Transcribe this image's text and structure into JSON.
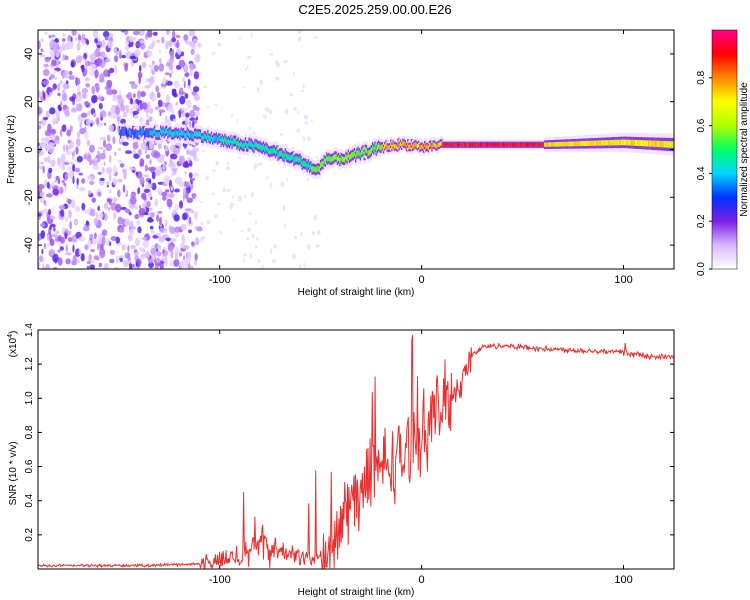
{
  "title": "C2E5.2025.259.00.00.E26",
  "chart_data": [
    {
      "type": "heatmap",
      "xlabel": "Height of straight line (km)",
      "ylabel": "Frequency (Hz)",
      "xlim": [
        -190,
        125
      ],
      "ylim": [
        -50,
        50
      ],
      "x_ticks": [
        -100,
        0,
        100
      ],
      "y_ticks": [
        -40,
        -20,
        0,
        20,
        40
      ],
      "colorbar": {
        "label": "Normalized spectral amplitude",
        "range": [
          0,
          1
        ],
        "ticks": [
          0.0,
          0.2,
          0.4,
          0.6,
          0.8
        ],
        "colors": [
          "#ffffff",
          "#d8b8ff",
          "#7b1fe6",
          "#0033ff",
          "#00d6ff",
          "#00ff66",
          "#b0ff00",
          "#ffff00",
          "#ff8800",
          "#ff0000",
          "#ff0088"
        ]
      },
      "ridge": {
        "x": [
          -150,
          -125,
          -110,
          -95,
          -80,
          -70,
          -60,
          -52,
          -48,
          -42,
          -35,
          -28,
          -20,
          -12,
          -5,
          0,
          10,
          30,
          60,
          100,
          125
        ],
        "y": [
          7,
          7,
          6,
          3,
          1,
          -2,
          -5,
          -9,
          -4,
          -4,
          -3,
          -1,
          1,
          2,
          2,
          1,
          2,
          2,
          2,
          3,
          2
        ]
      }
    },
    {
      "type": "line",
      "xlabel": "Height of straight line (km)",
      "ylabel": "SNR (10 * v/v)",
      "y_multiplier": "(x10",
      "y_multiplier_exp": "4",
      "y_multiplier_close": ")",
      "xlim": [
        -190,
        125
      ],
      "ylim": [
        0,
        1.4
      ],
      "x_ticks": [
        -100,
        0,
        100
      ],
      "y_ticks": [
        0.2,
        0.4,
        0.6,
        0.8,
        1.0,
        1.2,
        1.4
      ],
      "color": "#e83030",
      "envelope": {
        "x": [
          -190,
          -140,
          -110,
          -95,
          -85,
          -80,
          -70,
          -62,
          -55,
          -48,
          -42,
          -38,
          -30,
          -20,
          -10,
          0,
          10,
          20,
          25,
          30,
          40,
          60,
          80,
          100,
          110,
          125
        ],
        "y": [
          0.02,
          0.02,
          0.03,
          0.06,
          0.12,
          0.14,
          0.1,
          0.08,
          0.06,
          0.07,
          0.15,
          0.35,
          0.45,
          0.6,
          0.65,
          0.8,
          0.95,
          1.1,
          1.25,
          1.3,
          1.31,
          1.29,
          1.28,
          1.27,
          1.25,
          1.24
        ]
      }
    }
  ]
}
